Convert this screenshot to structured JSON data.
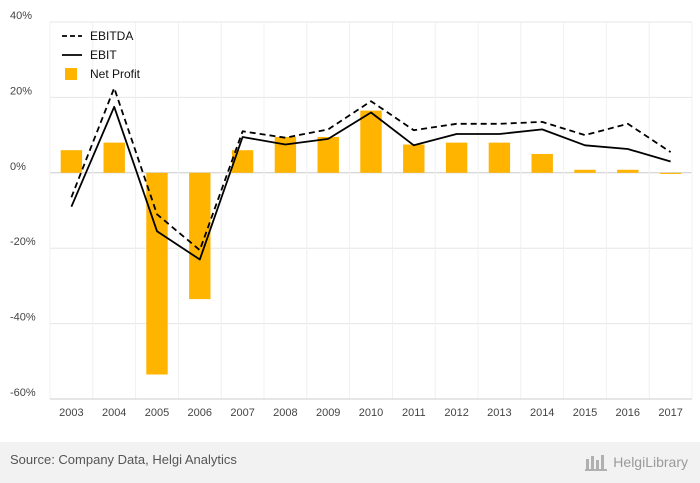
{
  "chart_data": {
    "type": "bar",
    "categories": [
      "2003",
      "2004",
      "2005",
      "2006",
      "2007",
      "2008",
      "2009",
      "2010",
      "2011",
      "2012",
      "2013",
      "2014",
      "2015",
      "2016",
      "2017"
    ],
    "ylim": [
      -60,
      40
    ],
    "yticks": [
      40,
      20,
      0,
      -20,
      -40,
      -60
    ],
    "ytick_labels": [
      "40%",
      "20%",
      "0%",
      "-20%",
      "-40%",
      "-60%"
    ],
    "grid": true,
    "legend_position": "top-left",
    "series": [
      {
        "name": "EBITDA",
        "kind": "line",
        "style": "dashed",
        "color": "#000000",
        "values": [
          -6.5,
          22.5,
          -11,
          -20.5,
          11,
          9.3,
          11.5,
          19,
          11.3,
          13,
          13,
          13.5,
          10,
          13,
          5.5
        ]
      },
      {
        "name": "EBIT",
        "kind": "line",
        "style": "solid",
        "color": "#000000",
        "values": [
          -9,
          17.5,
          -15.5,
          -23,
          9.5,
          7.5,
          9,
          16,
          7.3,
          10.3,
          10.3,
          11.5,
          7.3,
          6.3,
          3
        ]
      },
      {
        "name": "Net Profit",
        "kind": "bar",
        "color": "#FFB400",
        "values": [
          6,
          8,
          -53.5,
          -33.5,
          6,
          9.5,
          9.5,
          16.5,
          7.5,
          8,
          8,
          5,
          0.8,
          0.8,
          -0.3
        ]
      }
    ]
  },
  "footer": {
    "source": "Source: Company Data, Helgi Analytics",
    "logo_text": "HelgiLibrary"
  }
}
